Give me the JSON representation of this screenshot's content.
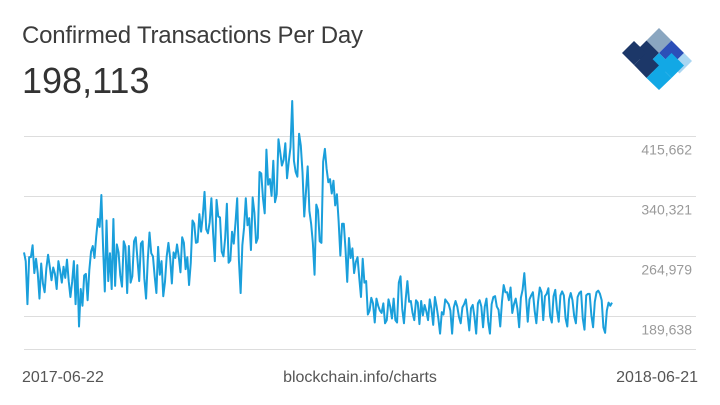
{
  "header": {
    "title": "Confirmed Transactions Per Day",
    "current_value": "198,113"
  },
  "logo": {
    "icon": "blockchain-logo-icon",
    "colors": [
      "#1c3768",
      "#8aa6c0",
      "#2c4fb8",
      "#12a8e5",
      "#a9d6f2"
    ]
  },
  "footer": {
    "start_date": "2017-06-22",
    "source": "blockchain.info/charts",
    "end_date": "2018-06-21"
  },
  "chart_data": {
    "type": "line",
    "title": "Confirmed Transactions Per Day",
    "line_color": "#1a9fdb",
    "grid": true,
    "x_range": [
      "2017-06-22",
      "2018-06-21"
    ],
    "ylim": [
      150000,
      450000
    ],
    "y_ticks": [
      189638,
      264979,
      340321,
      415662
    ],
    "y_tick_labels": [
      "415,662",
      "340,321",
      "264,979",
      "189,638"
    ],
    "y": [
      270000,
      259000,
      205000,
      264000,
      264000,
      279000,
      244000,
      262000,
      244000,
      212000,
      256000,
      231000,
      220000,
      250000,
      267000,
      252000,
      235000,
      251000,
      243000,
      224000,
      259000,
      247000,
      232000,
      252000,
      238000,
      261000,
      234000,
      214000,
      233000,
      259000,
      205000,
      254000,
      177000,
      224000,
      203000,
      241000,
      243000,
      210000,
      248000,
      271000,
      278000,
      263000,
      290000,
      312000,
      302000,
      342000,
      276000,
      221000,
      310000,
      234000,
      269000,
      224000,
      312000,
      228000,
      280000,
      270000,
      241000,
      227000,
      284000,
      277000,
      219000,
      278000,
      232000,
      240000,
      284000,
      289000,
      261000,
      234000,
      281000,
      284000,
      237000,
      212000,
      261000,
      295000,
      269000,
      265000,
      240000,
      219000,
      277000,
      242000,
      259000,
      215000,
      233000,
      265000,
      282000,
      263000,
      231000,
      270000,
      263000,
      280000,
      265000,
      245000,
      289000,
      282000,
      249000,
      264000,
      229000,
      257000,
      310000,
      306000,
      282000,
      283000,
      318000,
      296000,
      316000,
      346000,
      299000,
      294000,
      308000,
      338000,
      294000,
      259000,
      336000,
      315000,
      314000,
      271000,
      265000,
      288000,
      331000,
      257000,
      260000,
      296000,
      281000,
      307000,
      338000,
      260000,
      219000,
      279000,
      301000,
      338000,
      304000,
      313000,
      273000,
      339000,
      320000,
      282000,
      288000,
      371000,
      369000,
      338000,
      319000,
      399000,
      355000,
      362000,
      341000,
      385000,
      333000,
      343000,
      412000,
      396000,
      379000,
      386000,
      407000,
      363000,
      384000,
      402000,
      460000,
      385000,
      371000,
      365000,
      419000,
      404000,
      370000,
      315000,
      346000,
      378000,
      322000,
      306000,
      282000,
      242000,
      330000,
      323000,
      284000,
      282000,
      384000,
      400000,
      375000,
      358000,
      362000,
      344000,
      360000,
      329000,
      343000,
      309000,
      266000,
      306000,
      306000,
      274000,
      233000,
      288000,
      263000,
      275000,
      244000,
      258000,
      264000,
      238000,
      214000,
      262000,
      232000,
      234000,
      192000,
      197000,
      213000,
      206000,
      182000,
      212000,
      203000,
      197000,
      194000,
      206000,
      181000,
      185000,
      211000,
      202000,
      187000,
      212000,
      185000,
      182000,
      232000,
      240000,
      199000,
      181000,
      211000,
      234000,
      208000,
      209000,
      194000,
      185000,
      210000,
      207000,
      180000,
      209000,
      191000,
      204000,
      196000,
      185000,
      211000,
      199000,
      179000,
      214000,
      202000,
      187000,
      168000,
      195000,
      192000,
      211000,
      208000,
      205000,
      197000,
      168000,
      201000,
      209000,
      202000,
      189000,
      181000,
      201000,
      205000,
      211000,
      192000,
      172000,
      200000,
      204000,
      189000,
      168000,
      206000,
      210000,
      202000,
      176000,
      202000,
      212000,
      183000,
      168000,
      205000,
      214000,
      215000,
      202000,
      198000,
      177000,
      208000,
      229000,
      220000,
      220000,
      210000,
      226000,
      194000,
      205000,
      212000,
      199000,
      176000,
      213000,
      223000,
      244000,
      214000,
      183000,
      211000,
      216000,
      220000,
      197000,
      181000,
      208000,
      226000,
      220000,
      185000,
      215000,
      218000,
      225000,
      190000,
      182000,
      215000,
      223000,
      198000,
      183000,
      216000,
      221000,
      216000,
      187000,
      177000,
      211000,
      219000,
      210000,
      190000,
      181000,
      214000,
      219000,
      221000,
      187000,
      173000,
      216000,
      218000,
      218000,
      191000,
      176000,
      208000,
      220000,
      222000,
      218000,
      210000,
      176000,
      169000,
      197000,
      207000,
      203000,
      207000
    ]
  }
}
